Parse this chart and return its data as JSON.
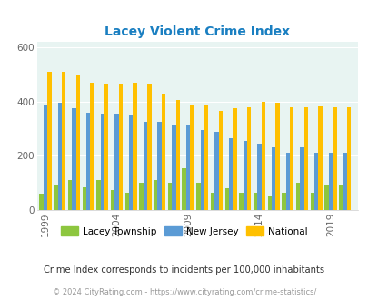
{
  "title": "Lacey Violent Crime Index",
  "title_color": "#1a7fc1",
  "years": [
    1999,
    2000,
    2001,
    2002,
    2003,
    2004,
    2005,
    2006,
    2007,
    2008,
    2009,
    2010,
    2011,
    2012,
    2013,
    2014,
    2015,
    2016,
    2017,
    2018,
    2019,
    2020
  ],
  "lacey": [
    60,
    90,
    110,
    85,
    110,
    75,
    65,
    100,
    110,
    100,
    155,
    100,
    65,
    80,
    65,
    65,
    50,
    65,
    100,
    65,
    90,
    90
  ],
  "nj": [
    385,
    395,
    375,
    360,
    355,
    355,
    350,
    325,
    325,
    315,
    315,
    295,
    290,
    265,
    255,
    245,
    230,
    210,
    230,
    210,
    210,
    210
  ],
  "national": [
    510,
    510,
    495,
    470,
    465,
    465,
    470,
    465,
    430,
    405,
    390,
    390,
    365,
    375,
    380,
    400,
    395,
    380,
    380,
    383,
    379,
    379
  ],
  "lacey_color": "#8dc63f",
  "nj_color": "#5b9bd5",
  "national_color": "#ffc000",
  "bg_color": "#e8f4f2",
  "ylim": [
    0,
    620
  ],
  "yticks": [
    0,
    200,
    400,
    600
  ],
  "bar_width": 0.28,
  "subtitle": "Crime Index corresponds to incidents per 100,000 inhabitants",
  "footer": "© 2024 CityRating.com - https://www.cityrating.com/crime-statistics/",
  "xlabel_ticks": [
    1999,
    2004,
    2009,
    2014,
    2019
  ],
  "legend_labels": [
    "Lacey Township",
    "New Jersey",
    "National"
  ]
}
